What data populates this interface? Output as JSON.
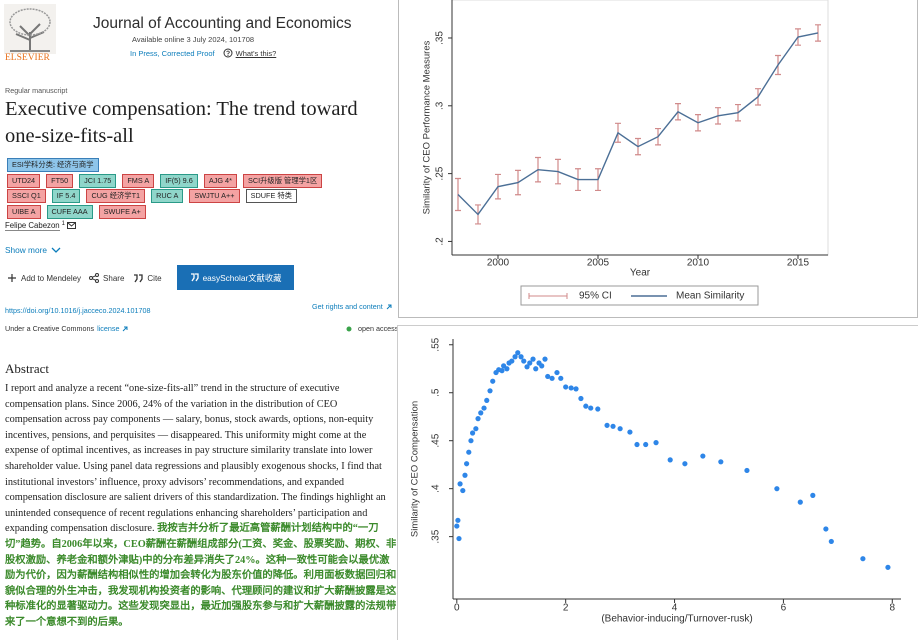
{
  "header": {
    "publisher": "ELSEVIER",
    "journal": "Journal of Accounting and Economics",
    "available": "Available online 3 July 2024, 101708",
    "status": "In Press, Corrected Proof",
    "whats_this": "What's this?"
  },
  "article": {
    "type_label": "Regular manuscript",
    "title": "Executive compensation: The trend toward one-size-fits-all",
    "tag_rows": [
      [
        {
          "text": "ESI学科分类: 经济与商学",
          "bg": "#8ec5ea",
          "border": "#3a7fb8"
        }
      ],
      [
        {
          "text": "UTD24",
          "bg": "#f4a3a3",
          "border": "#c44"
        },
        {
          "text": "FT50",
          "bg": "#f4a3a3",
          "border": "#c44"
        },
        {
          "text": "JCI 1.75",
          "bg": "#8fd6ca",
          "border": "#2a9a88"
        },
        {
          "text": "FMS A",
          "bg": "#f4a3a3",
          "border": "#c44"
        },
        {
          "text": "IF(5) 9.6",
          "bg": "#8fd6ca",
          "border": "#2a9a88"
        },
        {
          "text": "AJG 4*",
          "bg": "#f4a3a3",
          "border": "#c44"
        },
        {
          "text": "SCI升级版 管理学1区",
          "bg": "#f4a3a3",
          "border": "#c44"
        }
      ],
      [
        {
          "text": "SSCI Q1",
          "bg": "#f4a3a3",
          "border": "#c44"
        },
        {
          "text": "IF 5.4",
          "bg": "#8fd6ca",
          "border": "#2a9a88"
        },
        {
          "text": "CUG 经济学T1",
          "bg": "#f4a3a3",
          "border": "#c44"
        },
        {
          "text": "RUC A",
          "bg": "#8fd6ca",
          "border": "#2a9a88"
        },
        {
          "text": "SWJTU A++",
          "bg": "#f4a3a3",
          "border": "#c44"
        },
        {
          "text": "SDUFE 特类",
          "bg": "#ffffff",
          "border": "#555"
        }
      ],
      [
        {
          "text": "UIBE A",
          "bg": "#f4a3a3",
          "border": "#c44"
        },
        {
          "text": "CUFE AAA",
          "bg": "#8fd6ca",
          "border": "#2a9a88"
        },
        {
          "text": "SWUFE A+",
          "bg": "#f4a3a3",
          "border": "#c44"
        }
      ]
    ],
    "author": "Felipe Cabezon",
    "author_sup": "1",
    "show_more": "Show more",
    "actions": [
      "Add to Mendeley",
      "Share",
      "Cite"
    ],
    "easyscholar": "easyScholar文献收藏",
    "doi": "https://doi.org/10.1016/j.jacceco.2024.101708",
    "rights": "Get rights and content",
    "license_prefix": "Under a Creative Commons",
    "license_link": "license",
    "open_access": "open access",
    "abstract_heading": "Abstract",
    "abstract_en": "I report and analyze a recent “one-size-fits-all” trend in the structure of executive compensation plans. Since 2006, 24% of the variation in the distribution of CEO compensation across pay components — salary, bonus, stock awards, options, non-equity incentives, pensions, and perquisites — disappeared. This uniformity might come at the expense of optimal incentives, as increases in pay structure similarity translate into lower shareholder value. Using panel data regressions and plausibly exogenous shocks, I find that institutional investors’ influence, proxy advisors’ recommendations, and expanded compensation disclosure are salient drivers of this standardization. The findings highlight an unintended consequence of recent regulations enhancing shareholders’ participation and expanding compensation disclosure.",
    "abstract_zh": "我按吉并分析了最近高管薪酬计划结构中的“一刀切”趋势。自2006年以来，CEO薪酬在薪酬组成部分(工资、奖金、股票奖励、期权、非股权激励、养老金和额外津贴)中的分布差异消失了24%。这种一致性可能会以最优激励为代价，因为薪酬结构相似性的增加会转化为股东价值的降低。利用面板数据回归和貌似合理的外生冲击，我发现机构投资者的影响、代理顾问的建议和扩大薪酬披露是这种标准化的显著驱动力。这些发现突显出，最近加强股东参与和扩大薪酬披露的法规带来了一个意想不到的后果。"
  },
  "chart_data": [
    {
      "type": "line",
      "y_label": "Similarity of CEO Performance Measures",
      "x_label": "Year",
      "x": [
        1998,
        1999,
        2000,
        2001,
        2002,
        2003,
        2004,
        2005,
        2006,
        2007,
        2008,
        2009,
        2010,
        2011,
        2012,
        2013,
        2014,
        2015,
        2016
      ],
      "series": [
        {
          "name": "Mean Similarity",
          "color": "#4b6f96",
          "values": [
            0.2346,
            0.2199,
            0.2404,
            0.2434,
            0.2529,
            0.2515,
            0.2456,
            0.2456,
            0.2801,
            0.2699,
            0.2772,
            0.2956,
            0.2875,
            0.2926,
            0.2949,
            0.3066,
            0.3301,
            0.3507,
            0.3537
          ],
          "ci": {
            "name": "95% CI",
            "color": "#d08a8a",
            "errors": [
              0.0118,
              0.007,
              0.009,
              0.009,
              0.009,
              0.009,
              0.008,
              0.008,
              0.007,
              0.006,
              0.006,
              0.006,
              0.006,
              0.006,
              0.006,
              0.006,
              0.007,
              0.006,
              0.006
            ]
          }
        }
      ],
      "xlim": [
        1997.7,
        2016.5
      ],
      "ylim": [
        0.19,
        0.378
      ],
      "xticks": [
        2000,
        2005,
        2010,
        2015
      ],
      "yticks": [
        {
          "value": 0.2,
          "label": ".2"
        },
        {
          "value": 0.25,
          "label": ".25"
        },
        {
          "value": 0.3,
          "label": ".3"
        },
        {
          "value": 0.35,
          "label": ".35"
        }
      ]
    },
    {
      "type": "scatter",
      "y_label": "Similarity of CEO Compensation",
      "x_label": "(Behavior-inducing/Turnover-rusk)",
      "color": "#2e86e8",
      "x": [
        0.0,
        0.02,
        0.04,
        0.06,
        0.11,
        0.15,
        0.18,
        0.22,
        0.26,
        0.29,
        0.35,
        0.39,
        0.44,
        0.5,
        0.55,
        0.61,
        0.66,
        0.72,
        0.77,
        0.83,
        0.86,
        0.92,
        0.96,
        1.01,
        1.07,
        1.12,
        1.18,
        1.23,
        1.29,
        1.34,
        1.4,
        1.45,
        1.51,
        1.56,
        1.62,
        1.67,
        1.75,
        1.84,
        1.91,
        2.0,
        2.1,
        2.19,
        2.28,
        2.37,
        2.46,
        2.59,
        2.76,
        2.87,
        3.0,
        3.18,
        3.31,
        3.47,
        3.66,
        3.92,
        4.19,
        4.52,
        4.85,
        5.33,
        5.88,
        6.31,
        6.54,
        6.78,
        6.88,
        7.46,
        7.92
      ],
      "values": [
        0.361,
        0.367,
        0.348,
        0.405,
        0.398,
        0.414,
        0.426,
        0.438,
        0.45,
        0.458,
        0.4625,
        0.473,
        0.479,
        0.484,
        0.492,
        0.502,
        0.512,
        0.521,
        0.524,
        0.523,
        0.528,
        0.525,
        0.531,
        0.533,
        0.5375,
        0.5417,
        0.5375,
        0.533,
        0.527,
        0.531,
        0.535,
        0.525,
        0.531,
        0.528,
        0.535,
        0.517,
        0.515,
        0.521,
        0.515,
        0.506,
        0.505,
        0.504,
        0.494,
        0.486,
        0.484,
        0.483,
        0.466,
        0.465,
        0.4625,
        0.459,
        0.446,
        0.446,
        0.448,
        0.43,
        0.426,
        0.434,
        0.428,
        0.419,
        0.4,
        0.386,
        0.393,
        0.358,
        0.345,
        0.327,
        0.318
      ],
      "xlim": [
        -0.07,
        8.16
      ],
      "ylim": [
        0.285,
        0.556
      ],
      "xticks": [
        0,
        2,
        4,
        6,
        8
      ],
      "yticks": [
        {
          "value": 0.35,
          "label": ".35"
        },
        {
          "value": 0.4,
          "label": ".4"
        },
        {
          "value": 0.45,
          "label": ".45"
        },
        {
          "value": 0.5,
          "label": ".5"
        },
        {
          "value": 0.55,
          "label": ".55"
        }
      ]
    }
  ]
}
